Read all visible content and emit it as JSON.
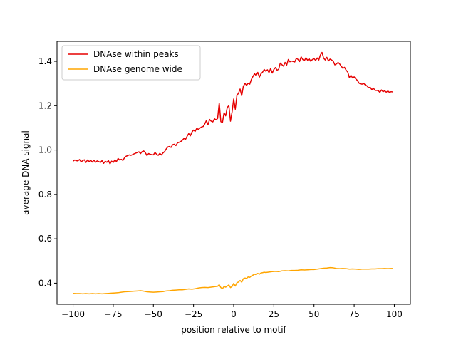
{
  "chart_data": {
    "type": "line",
    "title": "",
    "xlabel": "position relative to motif",
    "ylabel": "average DNA signal",
    "xlim": [
      -110,
      110
    ],
    "ylim": [
      0.305,
      1.49
    ],
    "x_ticks": [
      -100,
      -75,
      -50,
      -25,
      0,
      25,
      50,
      75,
      100
    ],
    "x_tick_labels": [
      "−100",
      "−75",
      "−50",
      "−25",
      "0",
      "25",
      "50",
      "75",
      "100"
    ],
    "y_ticks": [
      0.4,
      0.6,
      0.8,
      1.0,
      1.2,
      1.4
    ],
    "y_tick_labels": [
      "0.4",
      "0.6",
      "0.8",
      "1.0",
      "1.2",
      "1.4"
    ],
    "grid": false,
    "legend": {
      "placement": "upper-left",
      "entries": [
        "DNAse within peaks",
        "DNAse genome wide"
      ]
    },
    "series": [
      {
        "name": "DNAse within peaks",
        "color": "#e50000",
        "points": [
          [
            -100,
            0.95
          ],
          [
            -99,
            0.955
          ],
          [
            -98,
            0.952
          ],
          [
            -97,
            0.951
          ],
          [
            -96,
            0.957
          ],
          [
            -95,
            0.947
          ],
          [
            -94,
            0.952
          ],
          [
            -93,
            0.956
          ],
          [
            -92,
            0.944
          ],
          [
            -91,
            0.955
          ],
          [
            -90,
            0.948
          ],
          [
            -89,
            0.953
          ],
          [
            -88,
            0.946
          ],
          [
            -87,
            0.954
          ],
          [
            -86,
            0.945
          ],
          [
            -85,
            0.951
          ],
          [
            -84,
            0.948
          ],
          [
            -83,
            0.944
          ],
          [
            -82,
            0.952
          ],
          [
            -81,
            0.94
          ],
          [
            -80,
            0.949
          ],
          [
            -79,
            0.945
          ],
          [
            -78,
            0.952
          ],
          [
            -77,
            0.938
          ],
          [
            -76,
            0.95
          ],
          [
            -75,
            0.944
          ],
          [
            -74,
            0.955
          ],
          [
            -73,
            0.948
          ],
          [
            -72,
            0.962
          ],
          [
            -71,
            0.955
          ],
          [
            -70,
            0.958
          ],
          [
            -69,
            0.953
          ],
          [
            -68,
            0.965
          ],
          [
            -67,
            0.972
          ],
          [
            -66,
            0.975
          ],
          [
            -65,
            0.978
          ],
          [
            -64,
            0.976
          ],
          [
            -63,
            0.979
          ],
          [
            -62,
            0.983
          ],
          [
            -61,
            0.986
          ],
          [
            -60,
            0.989
          ],
          [
            -59,
            0.992
          ],
          [
            -58,
            0.984
          ],
          [
            -57,
            0.993
          ],
          [
            -56,
            0.996
          ],
          [
            -55,
            0.988
          ],
          [
            -54,
            0.975
          ],
          [
            -53,
            0.984
          ],
          [
            -52,
            0.981
          ],
          [
            -51,
            0.979
          ],
          [
            -50,
            0.978
          ],
          [
            -49,
            0.989
          ],
          [
            -48,
            0.981
          ],
          [
            -47,
            0.976
          ],
          [
            -46,
            0.985
          ],
          [
            -45,
            0.978
          ],
          [
            -44,
            0.987
          ],
          [
            -43,
            0.993
          ],
          [
            -42,
            1.005
          ],
          [
            -41,
            1.014
          ],
          [
            -40,
            1.016
          ],
          [
            -39,
            1.012
          ],
          [
            -38,
            1.024
          ],
          [
            -37,
            1.026
          ],
          [
            -36,
            1.02
          ],
          [
            -35,
            1.032
          ],
          [
            -34,
            1.035
          ],
          [
            -33,
            1.038
          ],
          [
            -32,
            1.044
          ],
          [
            -31,
            1.052
          ],
          [
            -30,
            1.048
          ],
          [
            -29,
            1.062
          ],
          [
            -28,
            1.074
          ],
          [
            -27,
            1.064
          ],
          [
            -26,
            1.081
          ],
          [
            -25,
            1.09
          ],
          [
            -24,
            1.084
          ],
          [
            -23,
            1.098
          ],
          [
            -22,
            1.093
          ],
          [
            -21,
            1.099
          ],
          [
            -20,
            1.104
          ],
          [
            -19,
            1.106
          ],
          [
            -18,
            1.118
          ],
          [
            -17,
            1.133
          ],
          [
            -16,
            1.114
          ],
          [
            -15,
            1.138
          ],
          [
            -14,
            1.13
          ],
          [
            -13,
            1.127
          ],
          [
            -12,
            1.141
          ],
          [
            -11,
            1.136
          ],
          [
            -10,
            1.142
          ],
          [
            -9,
            1.212
          ],
          [
            -8,
            1.128
          ],
          [
            -7,
            1.124
          ],
          [
            -6,
            1.168
          ],
          [
            -5,
            1.154
          ],
          [
            -4,
            1.192
          ],
          [
            -3,
            1.2
          ],
          [
            -2,
            1.13
          ],
          [
            -1,
            1.172
          ],
          [
            0,
            1.23
          ],
          [
            1,
            1.184
          ],
          [
            2,
            1.246
          ],
          [
            3,
            1.256
          ],
          [
            4,
            1.275
          ],
          [
            5,
            1.245
          ],
          [
            6,
            1.287
          ],
          [
            7,
            1.3
          ],
          [
            8,
            1.292
          ],
          [
            9,
            1.301
          ],
          [
            10,
            1.297
          ],
          [
            11,
            1.318
          ],
          [
            12,
            1.332
          ],
          [
            13,
            1.344
          ],
          [
            14,
            1.336
          ],
          [
            15,
            1.35
          ],
          [
            16,
            1.329
          ],
          [
            17,
            1.344
          ],
          [
            18,
            1.351
          ],
          [
            19,
            1.363
          ],
          [
            20,
            1.355
          ],
          [
            21,
            1.362
          ],
          [
            22,
            1.349
          ],
          [
            23,
            1.368
          ],
          [
            24,
            1.347
          ],
          [
            25,
            1.363
          ],
          [
            26,
            1.372
          ],
          [
            27,
            1.36
          ],
          [
            28,
            1.364
          ],
          [
            29,
            1.392
          ],
          [
            30,
            1.385
          ],
          [
            31,
            1.378
          ],
          [
            32,
            1.395
          ],
          [
            33,
            1.383
          ],
          [
            34,
            1.408
          ],
          [
            35,
            1.398
          ],
          [
            36,
            1.401
          ],
          [
            37,
            1.399
          ],
          [
            38,
            1.397
          ],
          [
            39,
            1.413
          ],
          [
            40,
            1.409
          ],
          [
            41,
            1.399
          ],
          [
            42,
            1.42
          ],
          [
            43,
            1.408
          ],
          [
            44,
            1.403
          ],
          [
            45,
            1.416
          ],
          [
            46,
            1.405
          ],
          [
            47,
            1.411
          ],
          [
            48,
            1.4
          ],
          [
            49,
            1.408
          ],
          [
            50,
            1.412
          ],
          [
            51,
            1.404
          ],
          [
            52,
            1.415
          ],
          [
            53,
            1.406
          ],
          [
            54,
            1.429
          ],
          [
            55,
            1.44
          ],
          [
            56,
            1.414
          ],
          [
            57,
            1.406
          ],
          [
            58,
            1.418
          ],
          [
            59,
            1.402
          ],
          [
            60,
            1.41
          ],
          [
            61,
            1.406
          ],
          [
            62,
            1.4
          ],
          [
            63,
            1.384
          ],
          [
            64,
            1.388
          ],
          [
            65,
            1.395
          ],
          [
            66,
            1.388
          ],
          [
            67,
            1.378
          ],
          [
            68,
            1.368
          ],
          [
            69,
            1.373
          ],
          [
            70,
            1.36
          ],
          [
            71,
            1.352
          ],
          [
            72,
            1.327
          ],
          [
            73,
            1.337
          ],
          [
            74,
            1.325
          ],
          [
            75,
            1.33
          ],
          [
            76,
            1.321
          ],
          [
            77,
            1.314
          ],
          [
            78,
            1.302
          ],
          [
            79,
            1.298
          ],
          [
            80,
            1.297
          ],
          [
            81,
            1.3
          ],
          [
            82,
            1.293
          ],
          [
            83,
            1.289
          ],
          [
            84,
            1.281
          ],
          [
            85,
            1.283
          ],
          [
            86,
            1.272
          ],
          [
            87,
            1.279
          ],
          [
            88,
            1.269
          ],
          [
            89,
            1.269
          ],
          [
            90,
            1.268
          ],
          [
            91,
            1.26
          ],
          [
            92,
            1.271
          ],
          [
            93,
            1.263
          ],
          [
            94,
            1.267
          ],
          [
            95,
            1.261
          ],
          [
            96,
            1.266
          ],
          [
            97,
            1.26
          ],
          [
            98,
            1.263
          ],
          [
            99,
            1.262
          ]
        ]
      },
      {
        "name": "DNAse genome wide",
        "color": "#ffa500",
        "points": [
          [
            -100,
            0.354
          ],
          [
            -98,
            0.353
          ],
          [
            -96,
            0.353
          ],
          [
            -94,
            0.352
          ],
          [
            -92,
            0.353
          ],
          [
            -90,
            0.352
          ],
          [
            -88,
            0.353
          ],
          [
            -86,
            0.352
          ],
          [
            -84,
            0.353
          ],
          [
            -82,
            0.352
          ],
          [
            -80,
            0.353
          ],
          [
            -78,
            0.354
          ],
          [
            -76,
            0.355
          ],
          [
            -74,
            0.356
          ],
          [
            -72,
            0.357
          ],
          [
            -70,
            0.359
          ],
          [
            -68,
            0.361
          ],
          [
            -66,
            0.362
          ],
          [
            -64,
            0.363
          ],
          [
            -62,
            0.364
          ],
          [
            -60,
            0.365
          ],
          [
            -58,
            0.366
          ],
          [
            -56,
            0.364
          ],
          [
            -54,
            0.361
          ],
          [
            -52,
            0.36
          ],
          [
            -50,
            0.359
          ],
          [
            -48,
            0.36
          ],
          [
            -46,
            0.361
          ],
          [
            -44,
            0.362
          ],
          [
            -42,
            0.365
          ],
          [
            -40,
            0.366
          ],
          [
            -38,
            0.368
          ],
          [
            -36,
            0.369
          ],
          [
            -34,
            0.37
          ],
          [
            -32,
            0.37
          ],
          [
            -30,
            0.372
          ],
          [
            -28,
            0.374
          ],
          [
            -26,
            0.373
          ],
          [
            -24,
            0.375
          ],
          [
            -22,
            0.378
          ],
          [
            -20,
            0.38
          ],
          [
            -18,
            0.381
          ],
          [
            -16,
            0.38
          ],
          [
            -14,
            0.382
          ],
          [
            -12,
            0.384
          ],
          [
            -10,
            0.386
          ],
          [
            -9,
            0.393
          ],
          [
            -8,
            0.38
          ],
          [
            -7,
            0.375
          ],
          [
            -6,
            0.385
          ],
          [
            -5,
            0.382
          ],
          [
            -4,
            0.387
          ],
          [
            -3,
            0.392
          ],
          [
            -2,
            0.38
          ],
          [
            -1,
            0.385
          ],
          [
            0,
            0.399
          ],
          [
            1,
            0.387
          ],
          [
            2,
            0.402
          ],
          [
            3,
            0.405
          ],
          [
            4,
            0.412
          ],
          [
            5,
            0.404
          ],
          [
            6,
            0.42
          ],
          [
            7,
            0.423
          ],
          [
            8,
            0.421
          ],
          [
            9,
            0.428
          ],
          [
            10,
            0.426
          ],
          [
            11,
            0.432
          ],
          [
            12,
            0.436
          ],
          [
            13,
            0.44
          ],
          [
            14,
            0.438
          ],
          [
            15,
            0.444
          ],
          [
            16,
            0.44
          ],
          [
            17,
            0.446
          ],
          [
            18,
            0.447
          ],
          [
            19,
            0.449
          ],
          [
            20,
            0.448
          ],
          [
            22,
            0.45
          ],
          [
            24,
            0.452
          ],
          [
            26,
            0.453
          ],
          [
            28,
            0.452
          ],
          [
            30,
            0.455
          ],
          [
            32,
            0.456
          ],
          [
            34,
            0.455
          ],
          [
            36,
            0.457
          ],
          [
            38,
            0.457
          ],
          [
            40,
            0.458
          ],
          [
            42,
            0.46
          ],
          [
            44,
            0.459
          ],
          [
            46,
            0.46
          ],
          [
            48,
            0.461
          ],
          [
            50,
            0.461
          ],
          [
            52,
            0.463
          ],
          [
            54,
            0.465
          ],
          [
            56,
            0.467
          ],
          [
            58,
            0.468
          ],
          [
            60,
            0.47
          ],
          [
            62,
            0.469
          ],
          [
            64,
            0.466
          ],
          [
            66,
            0.465
          ],
          [
            68,
            0.466
          ],
          [
            70,
            0.465
          ],
          [
            72,
            0.463
          ],
          [
            74,
            0.464
          ],
          [
            76,
            0.463
          ],
          [
            78,
            0.462
          ],
          [
            80,
            0.463
          ],
          [
            82,
            0.463
          ],
          [
            84,
            0.463
          ],
          [
            86,
            0.464
          ],
          [
            88,
            0.464
          ],
          [
            90,
            0.465
          ],
          [
            92,
            0.465
          ],
          [
            94,
            0.466
          ],
          [
            96,
            0.465
          ],
          [
            98,
            0.466
          ],
          [
            99,
            0.466
          ]
        ]
      }
    ]
  }
}
